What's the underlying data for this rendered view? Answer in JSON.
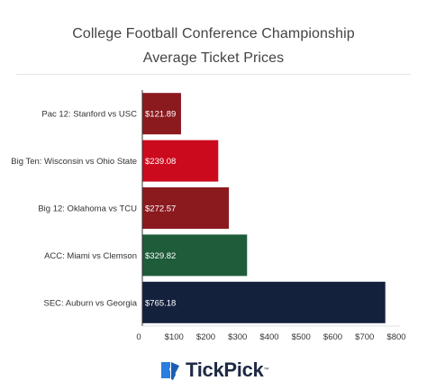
{
  "chart_data": {
    "type": "bar",
    "orientation": "horizontal",
    "title_line1": "College Football Conference Championship",
    "title_line2": "Average Ticket Prices",
    "categories": [
      "Pac 12: Stanford vs USC",
      "Big Ten: Wisconsin vs Ohio State",
      "Big 12: Oklahoma vs TCU",
      "ACC: Miami vs Clemson",
      "SEC: Auburn vs Georgia"
    ],
    "values": [
      121.89,
      239.08,
      272.57,
      329.82,
      765.18
    ],
    "value_labels": [
      "$121.89",
      "$239.08",
      "$272.57",
      "$329.82",
      "$765.18"
    ],
    "bar_colors": [
      "#8b1a1f",
      "#cc0a1e",
      "#8b1a1f",
      "#1e5c3a",
      "#14213d"
    ],
    "xlim": [
      0,
      800
    ],
    "x_ticks": [
      0,
      100,
      200,
      300,
      400,
      500,
      600,
      700,
      800
    ],
    "x_tick_labels": [
      "0",
      "$100",
      "$200",
      "$300",
      "$400",
      "$500",
      "$600",
      "$700",
      "$800"
    ],
    "grid": false,
    "legend": "none"
  },
  "brand": {
    "name": "TickPick",
    "trademark": "™",
    "icon": "tickpick-ticket-icon",
    "color": "#1f2a44",
    "icon_color": "#2a7de1"
  }
}
